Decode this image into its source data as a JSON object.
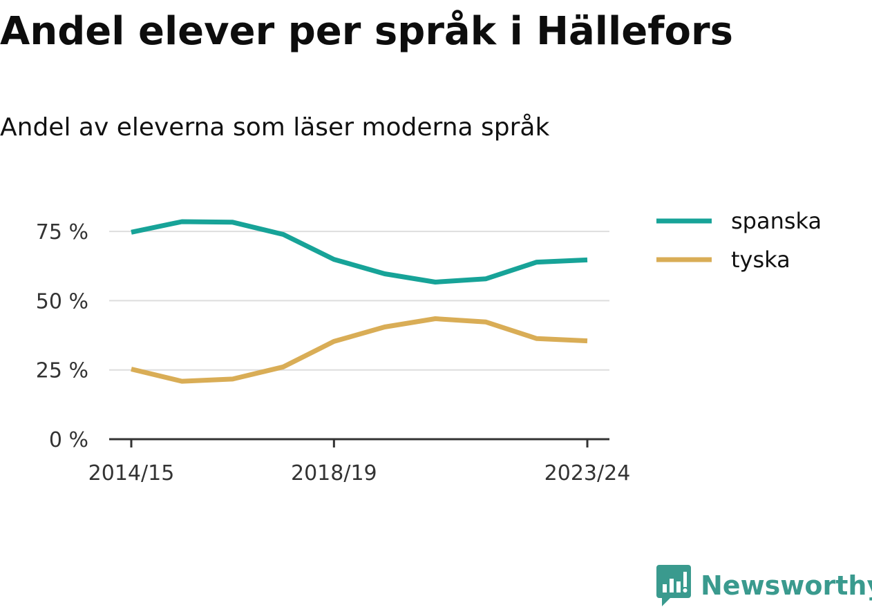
{
  "chart_data": {
    "type": "line",
    "title": "Andel elever per språk i Hällefors",
    "subtitle": "Andel av eleverna som läser moderna språk",
    "x": [
      "2014/15",
      "2015/16",
      "2016/17",
      "2017/18",
      "2018/19",
      "2019/20",
      "2020/21",
      "2021/22",
      "2022/23",
      "2023/24"
    ],
    "x_ticks": [
      "2014/15",
      "2018/19",
      "2023/24"
    ],
    "y_ticks": [
      0,
      25,
      50,
      75
    ],
    "y_tick_labels": [
      "0 %",
      "25 %",
      "50 %",
      "75 %"
    ],
    "ylim": [
      0,
      80
    ],
    "grid": true,
    "legend_position": "right",
    "series": [
      {
        "name": "spanska",
        "color": "#17a398",
        "values": [
          74.7,
          78.5,
          78.3,
          73.9,
          64.9,
          59.7,
          56.7,
          57.9,
          63.9,
          64.7
        ]
      },
      {
        "name": "tyska",
        "color": "#d9ad56",
        "values": [
          25.3,
          20.9,
          21.7,
          26.1,
          35.3,
          40.5,
          43.5,
          42.3,
          36.3,
          35.5
        ]
      }
    ],
    "xlabel": "",
    "ylabel": ""
  },
  "brand": {
    "name": "Newsworthy",
    "icon": "newsworthy-logo-icon",
    "color": "#3a9a8e"
  }
}
